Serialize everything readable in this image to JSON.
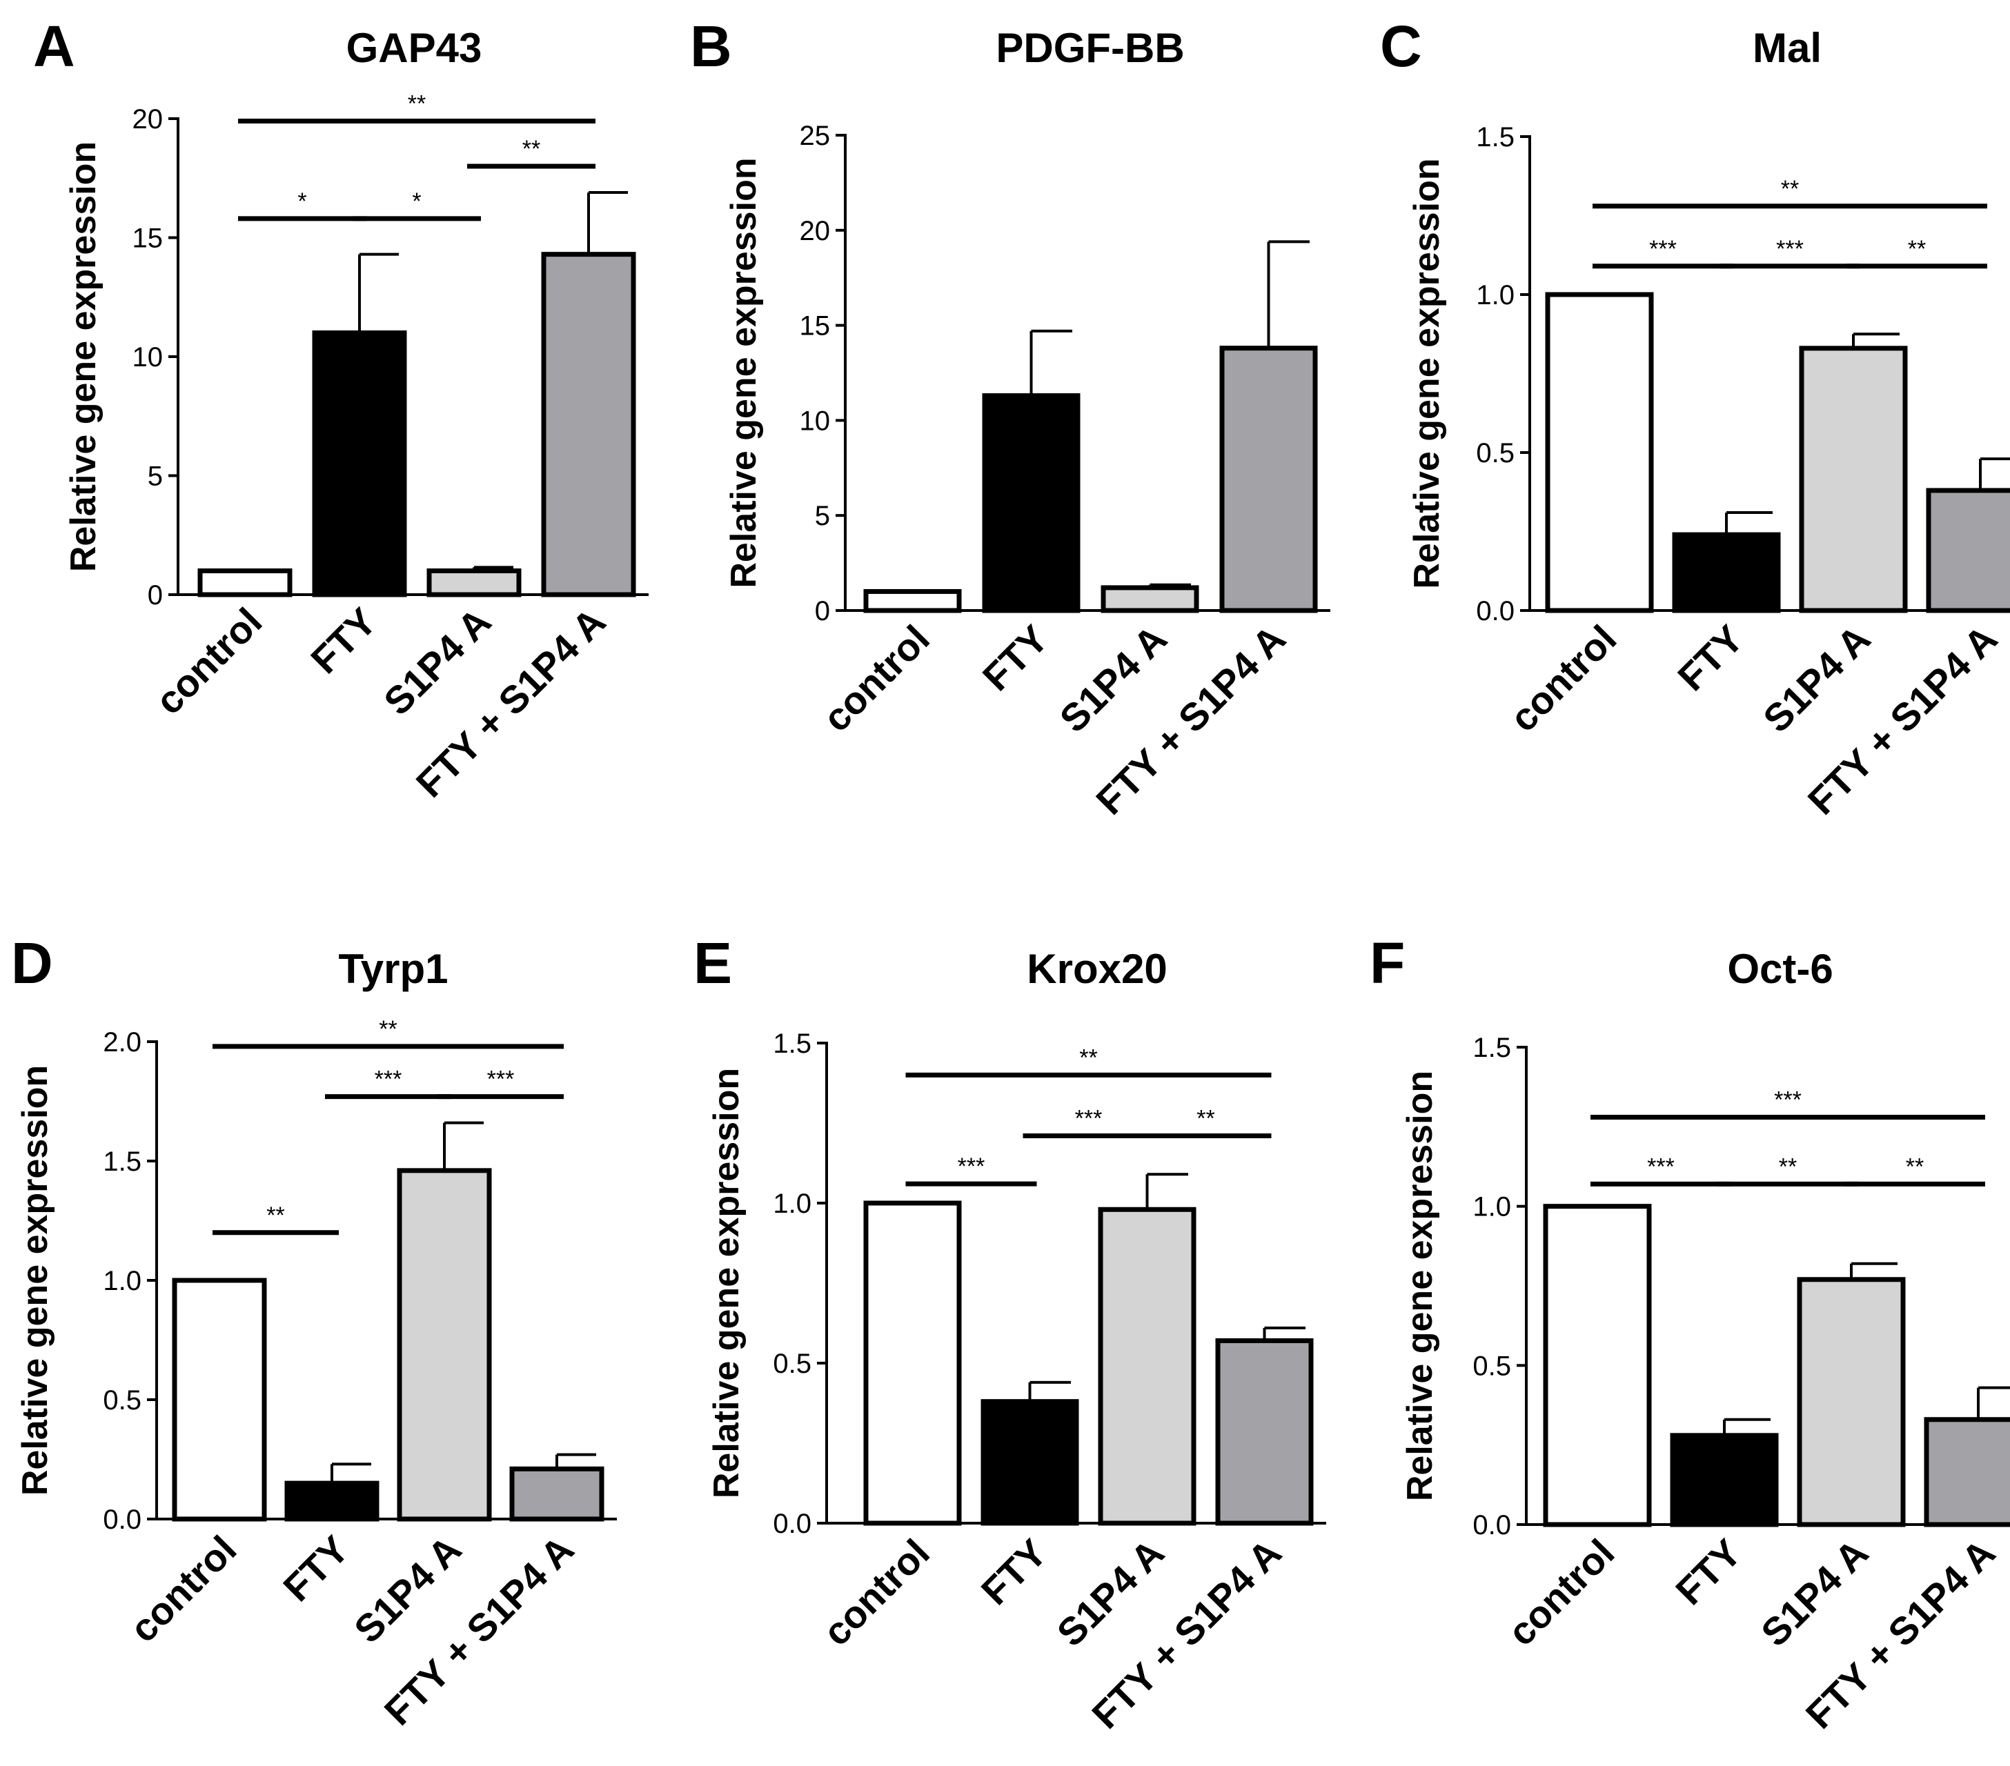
{
  "chart_data": [
    {
      "type": "bar",
      "panel_label": "A",
      "title": "GAP43",
      "ylabel": "Relative gene expression",
      "categories": [
        "control",
        "FTY",
        "S1P4 A",
        "FTY + S1P4 A"
      ],
      "values": [
        1.0,
        11.0,
        1.0,
        14.3
      ],
      "errors": [
        0.0,
        3.3,
        0.15,
        2.6
      ],
      "ylim": [
        0,
        20
      ],
      "yticks": [
        "0",
        "5",
        "10",
        "15",
        "20"
      ],
      "significance": [
        {
          "from": 0,
          "to": 1,
          "y": 15.8,
          "label": "*"
        },
        {
          "from": 1,
          "to": 2,
          "y": 15.8,
          "label": "*"
        },
        {
          "from": 2,
          "to": 3,
          "y": 18.0,
          "label": "**"
        },
        {
          "from": 0,
          "to": 3,
          "y": 19.9,
          "label": "**"
        }
      ]
    },
    {
      "type": "bar",
      "panel_label": "B",
      "title": "PDGF-BB",
      "ylabel": "Relative gene expression",
      "categories": [
        "control",
        "FTY",
        "S1P4 A",
        "FTY + S1P4 A"
      ],
      "values": [
        1.0,
        11.3,
        1.2,
        13.8
      ],
      "errors": [
        0.0,
        3.4,
        0.15,
        5.6
      ],
      "ylim": [
        0,
        25
      ],
      "yticks": [
        "0",
        "5",
        "10",
        "15",
        "20",
        "25"
      ],
      "significance": []
    },
    {
      "type": "bar",
      "panel_label": "C",
      "title": "Mal",
      "ylabel": "Relative gene expression",
      "categories": [
        "control",
        "FTY",
        "S1P4 A",
        "FTY + S1P4 A"
      ],
      "values": [
        1.0,
        0.24,
        0.83,
        0.38
      ],
      "errors": [
        0.0,
        0.07,
        0.045,
        0.1
      ],
      "ylim": [
        0,
        1.5
      ],
      "yticks": [
        "0.0",
        "0.5",
        "1.0",
        "1.5"
      ],
      "significance": [
        {
          "from": 0,
          "to": 1,
          "y": 1.09,
          "label": "***"
        },
        {
          "from": 1,
          "to": 2,
          "y": 1.09,
          "label": "***"
        },
        {
          "from": 2,
          "to": 3,
          "y": 1.09,
          "label": "**"
        },
        {
          "from": 0,
          "to": 3,
          "y": 1.28,
          "label": "**"
        }
      ]
    },
    {
      "type": "bar",
      "panel_label": "D",
      "title": "Tyrp1",
      "ylabel": "Relative gene expression",
      "categories": [
        "control",
        "FTY",
        "S1P4 A",
        "FTY + S1P4 A"
      ],
      "values": [
        1.0,
        0.15,
        1.46,
        0.21
      ],
      "errors": [
        0.0,
        0.08,
        0.2,
        0.06
      ],
      "ylim": [
        0,
        2.0
      ],
      "yticks": [
        "0.0",
        "0.5",
        "1.0",
        "1.5",
        "2.0"
      ],
      "significance": [
        {
          "from": 0,
          "to": 1,
          "y": 1.2,
          "label": "**"
        },
        {
          "from": 1,
          "to": 2,
          "y": 1.77,
          "label": "***"
        },
        {
          "from": 2,
          "to": 3,
          "y": 1.77,
          "label": "***"
        },
        {
          "from": 0,
          "to": 3,
          "y": 1.98,
          "label": "**"
        }
      ]
    },
    {
      "type": "bar",
      "panel_label": "E",
      "title": "Krox20",
      "ylabel": "Relative gene expression",
      "categories": [
        "control",
        "FTY",
        "S1P4 A",
        "FTY + S1P4 A"
      ],
      "values": [
        1.0,
        0.38,
        0.98,
        0.57
      ],
      "errors": [
        0.0,
        0.06,
        0.11,
        0.04
      ],
      "ylim": [
        0,
        1.5
      ],
      "yticks": [
        "0.0",
        "0.5",
        "1.0",
        "1.5"
      ],
      "significance": [
        {
          "from": 0,
          "to": 1,
          "y": 1.06,
          "label": "***"
        },
        {
          "from": 1,
          "to": 2,
          "y": 1.21,
          "label": "***"
        },
        {
          "from": 2,
          "to": 3,
          "y": 1.21,
          "label": "**"
        },
        {
          "from": 0,
          "to": 3,
          "y": 1.4,
          "label": "**"
        }
      ]
    },
    {
      "type": "bar",
      "panel_label": "F",
      "title": "Oct-6",
      "ylabel": "Relative gene expression",
      "categories": [
        "control",
        "FTY",
        "S1P4 A",
        "FTY + S1P4 A"
      ],
      "values": [
        1.0,
        0.28,
        0.77,
        0.33
      ],
      "errors": [
        0.0,
        0.05,
        0.05,
        0.1
      ],
      "ylim": [
        0,
        1.5
      ],
      "yticks": [
        "0.0",
        "0.5",
        "1.0",
        "1.5"
      ],
      "significance": [
        {
          "from": 0,
          "to": 1,
          "y": 1.07,
          "label": "***"
        },
        {
          "from": 1,
          "to": 2,
          "y": 1.07,
          "label": "**"
        },
        {
          "from": 2,
          "to": 3,
          "y": 1.07,
          "label": "**"
        },
        {
          "from": 0,
          "to": 3,
          "y": 1.28,
          "label": "***"
        }
      ]
    }
  ],
  "bar_colors": [
    "#ffffff",
    "#000000",
    "#d4d4d4",
    "#a3a3a7"
  ],
  "stroke_color": "#000000"
}
